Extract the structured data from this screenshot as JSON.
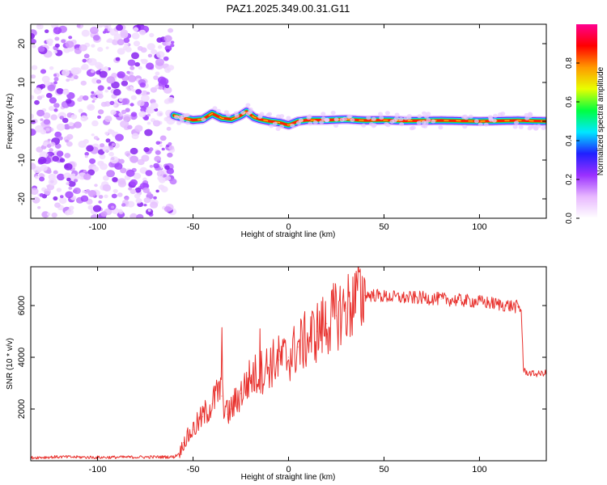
{
  "figure_title": "PAZ1.2025.349.00.31.G11",
  "chart_data": [
    {
      "type": "heatmap",
      "title": "",
      "xlabel": "Height of straight line (km)",
      "ylabel": "Frequency (Hz)",
      "xlim": [
        -135,
        135
      ],
      "ylim": [
        -25,
        25
      ],
      "x_ticks": [
        -100,
        -50,
        0,
        50,
        100
      ],
      "y_ticks": [
        -20,
        -10,
        0,
        10,
        20
      ],
      "colorbar": {
        "label": "Normalized spectral amplitude",
        "range": [
          0,
          1
        ],
        "ticks": [
          "0.0",
          "0.2",
          "0.4",
          "0.6",
          "0.8"
        ],
        "colors": [
          "#ffffff",
          "#e8b8ff",
          "#9a30ff",
          "#2020ff",
          "#00e8ff",
          "#00ff40",
          "#e8ff00",
          "#ff9900",
          "#ff0000",
          "#ff0090"
        ]
      },
      "noise_region_x": [
        -135,
        -60
      ],
      "ridge": {
        "x": [
          -60,
          -55,
          -50,
          -45,
          -40,
          -35,
          -30,
          -25,
          -22,
          -18,
          -15,
          -10,
          -5,
          0,
          5,
          10,
          20,
          30,
          40,
          50,
          60,
          80,
          100,
          120,
          135
        ],
        "frequency": [
          1.5,
          0.8,
          0.3,
          0.5,
          2.0,
          0.8,
          0.5,
          1.5,
          2.5,
          1.0,
          0.5,
          0.0,
          -0.3,
          -1.0,
          0.0,
          0.3,
          0.3,
          0.5,
          0.2,
          0.3,
          0.1,
          0.2,
          0.0,
          0.2,
          0.0
        ]
      }
    },
    {
      "type": "line",
      "title": "",
      "xlabel": "Height of straight line (km)",
      "ylabel": "SNR (10 * v/v)",
      "xlim": [
        -135,
        135
      ],
      "ylim": [
        0,
        7500
      ],
      "x_ticks": [
        -100,
        -50,
        0,
        50,
        100
      ],
      "y_ticks": [
        2000,
        4000,
        6000
      ],
      "color": "#e8312d",
      "series": [
        {
          "name": "SNR",
          "x": [
            -135,
            -120,
            -100,
            -80,
            -60,
            -57,
            -55,
            -52,
            -50,
            -45,
            -40,
            -36,
            -35,
            -32,
            -30,
            -25,
            -20,
            -15,
            -10,
            -5,
            0,
            5,
            10,
            15,
            20,
            25,
            30,
            35,
            40,
            45,
            50,
            60,
            70,
            80,
            90,
            100,
            110,
            120,
            122,
            123,
            125,
            130,
            135
          ],
          "values": [
            120,
            150,
            130,
            140,
            150,
            300,
            700,
            1000,
            1200,
            1700,
            2200,
            2800,
            2500,
            1800,
            2000,
            2600,
            3200,
            3400,
            3700,
            3900,
            4000,
            4400,
            4700,
            5000,
            5300,
            5600,
            5900,
            6200,
            6400,
            6400,
            6350,
            6300,
            6300,
            6250,
            6200,
            6150,
            6050,
            5950,
            5800,
            3500,
            3400,
            3350,
            3400
          ]
        }
      ],
      "spikes": [
        {
          "x": -35,
          "value": 5150
        },
        {
          "x": -15,
          "value": 5100
        },
        {
          "x": 37,
          "value": 7300
        }
      ]
    }
  ]
}
